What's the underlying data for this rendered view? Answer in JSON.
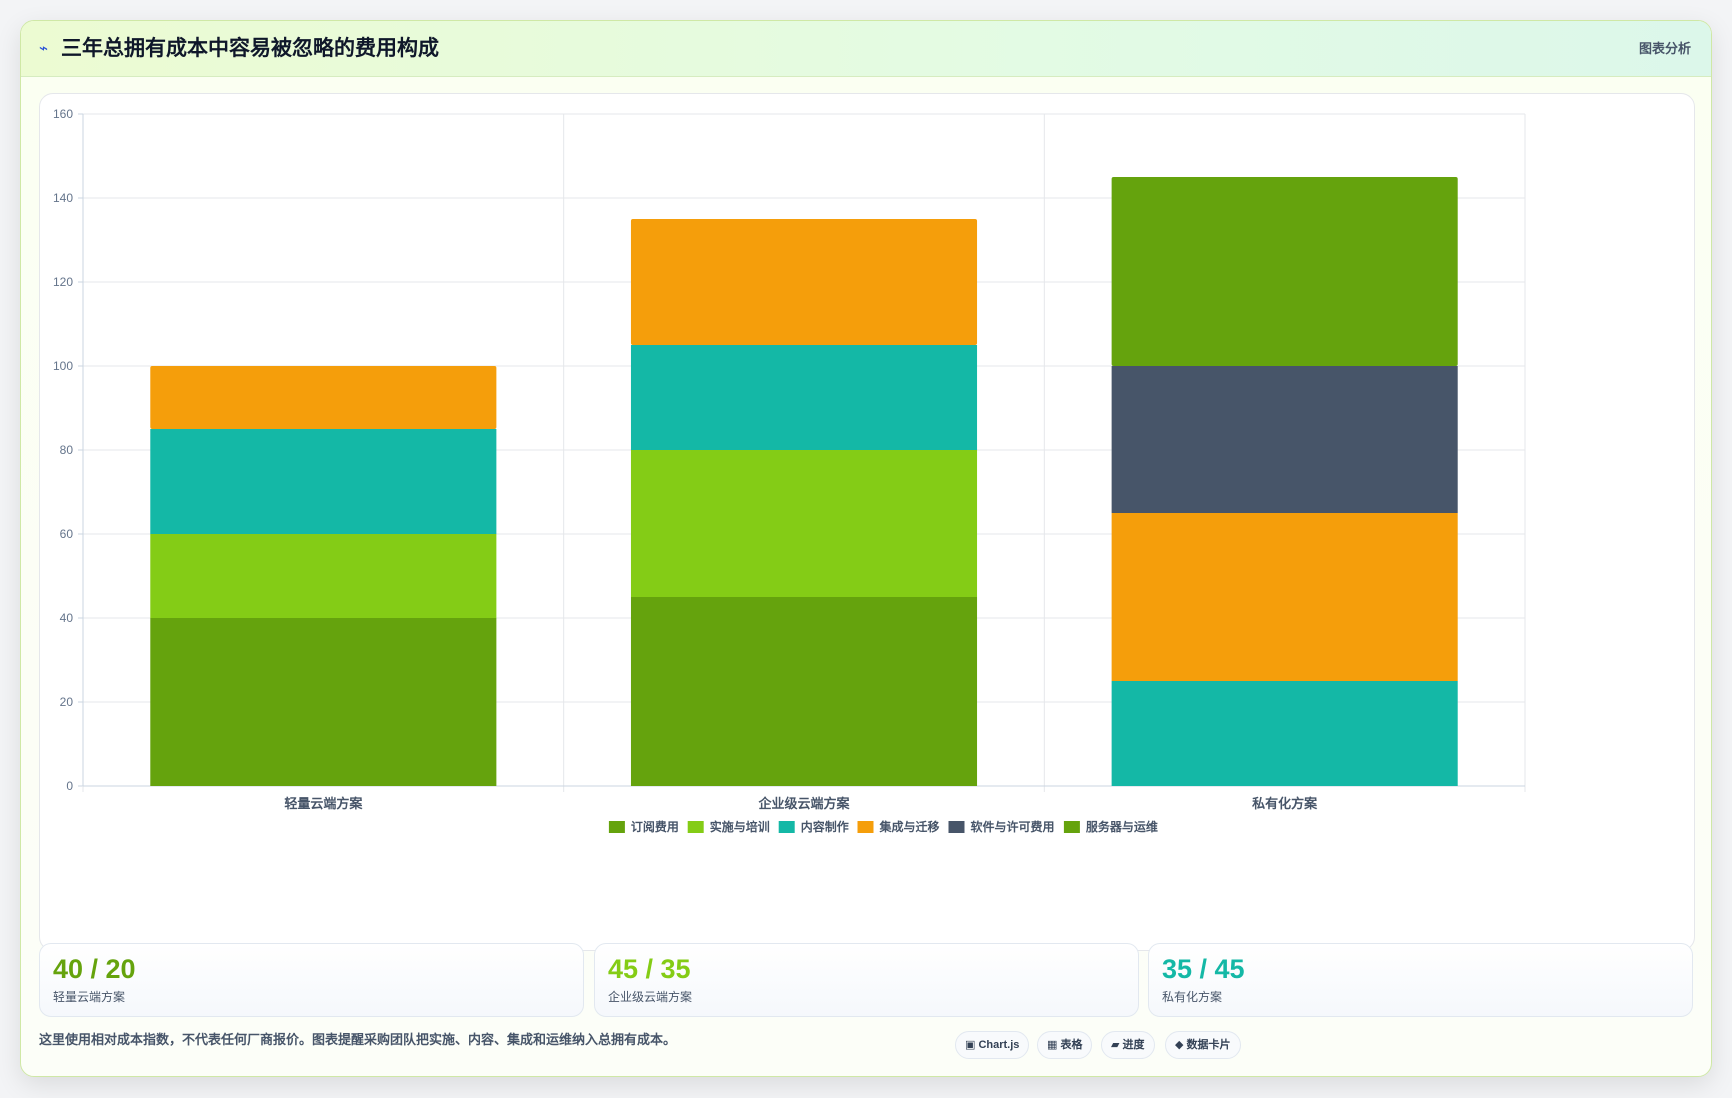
{
  "header": {
    "icon": "lightning-icon",
    "title": "三年总拥有成本中容易被忽略的费用构成",
    "tag": "图表分析"
  },
  "chart_data": {
    "type": "bar",
    "stacked": true,
    "categories": [
      "轻量云端方案",
      "企业级云端方案",
      "私有化方案"
    ],
    "ylim": [
      0,
      160
    ],
    "yticks": [
      0,
      20,
      40,
      60,
      80,
      100,
      120,
      140,
      160
    ],
    "grid": true,
    "legend_position": "bottom",
    "series": [
      {
        "name": "订阅费用",
        "color": "#65a30d",
        "values": [
          40,
          45,
          0
        ]
      },
      {
        "name": "实施与培训",
        "color": "#84cc16",
        "values": [
          20,
          35,
          0
        ]
      },
      {
        "name": "内容制作",
        "color": "#14b8a6",
        "values": [
          25,
          25,
          25
        ]
      },
      {
        "name": "集成与迁移",
        "color": "#f59e0b",
        "values": [
          15,
          30,
          40
        ]
      },
      {
        "name": "软件与许可费用",
        "color": "#475569",
        "values": [
          0,
          0,
          35
        ]
      },
      {
        "name": "服务器与运维",
        "color": "#65a30d",
        "values": [
          0,
          0,
          45
        ]
      }
    ]
  },
  "stats": [
    {
      "value": "40 / 20",
      "label": "轻量云端方案",
      "color": "#65a30d"
    },
    {
      "value": "45 / 35",
      "label": "企业级云端方案",
      "color": "#84cc16"
    },
    {
      "value": "35 / 45",
      "label": "私有化方案",
      "color": "#14b8a6"
    }
  ],
  "footnote": "这里使用相对成本指数，不代表任何厂商报价。图表提醒采购团队把实施、内容、集成和运维纳入总拥有成本。",
  "chips": [
    {
      "label": "▣ Chart.js",
      "icon": "chart-icon"
    },
    {
      "label": "▦ 表格",
      "icon": "table-icon"
    },
    {
      "label": "▰ 进度",
      "icon": "progress-icon"
    },
    {
      "label": "◆ 数据卡片",
      "icon": "diamond-icon"
    }
  ]
}
